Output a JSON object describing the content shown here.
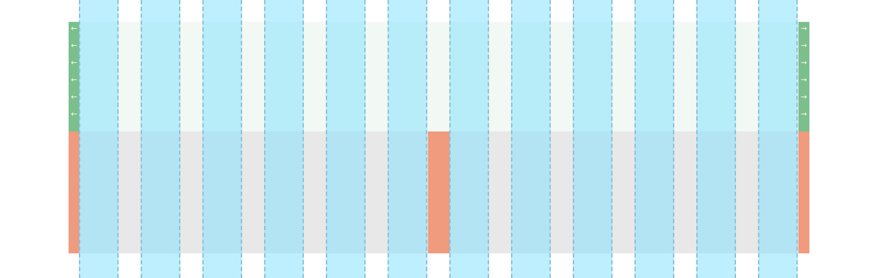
{
  "diagram": {
    "columns": 12,
    "colors": {
      "row_top": "#f2f8f3",
      "row_bottom": "#e8e8e8",
      "padding": "#7bbf8c",
      "gutter_block": "#f09a7e",
      "column_overlay": "rgba(128, 224, 255, 0.52)",
      "column_border": "#8ec0d6",
      "arrow": "#ffffff"
    },
    "padding_arrows": {
      "left_glyph": "←",
      "right_glyph": "→",
      "count_per_side": 6
    }
  }
}
